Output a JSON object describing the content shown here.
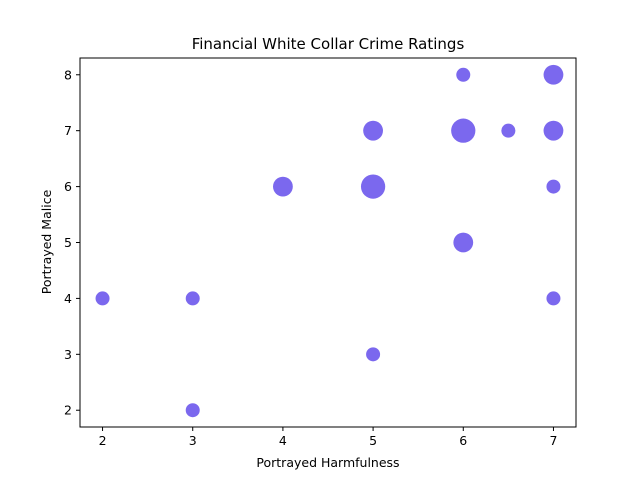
{
  "chart_data": {
    "type": "scatter",
    "title": "Financial White Collar Crime Ratings",
    "xlabel": "Portrayed Harmfulness",
    "ylabel": "Portrayed Malice",
    "xlim": [
      1.75,
      7.25
    ],
    "ylim": [
      1.7,
      8.3
    ],
    "xticks": [
      2,
      3,
      4,
      5,
      6,
      7
    ],
    "yticks": [
      2,
      3,
      4,
      5,
      6,
      7,
      8
    ],
    "grid": false,
    "marker_color": "#7b68ee",
    "points": [
      {
        "x": 2,
        "y": 4,
        "count": 1
      },
      {
        "x": 3,
        "y": 4,
        "count": 1
      },
      {
        "x": 3,
        "y": 2,
        "count": 1
      },
      {
        "x": 4,
        "y": 6,
        "count": 2
      },
      {
        "x": 5,
        "y": 7,
        "count": 2
      },
      {
        "x": 5,
        "y": 6,
        "count": 3
      },
      {
        "x": 5,
        "y": 3,
        "count": 1
      },
      {
        "x": 6,
        "y": 8,
        "count": 1
      },
      {
        "x": 6,
        "y": 7,
        "count": 3
      },
      {
        "x": 6,
        "y": 5,
        "count": 2
      },
      {
        "x": 6.5,
        "y": 7,
        "count": 1
      },
      {
        "x": 7,
        "y": 8,
        "count": 2
      },
      {
        "x": 7,
        "y": 7,
        "count": 2
      },
      {
        "x": 7,
        "y": 6,
        "count": 1
      },
      {
        "x": 7,
        "y": 4,
        "count": 1
      }
    ]
  }
}
